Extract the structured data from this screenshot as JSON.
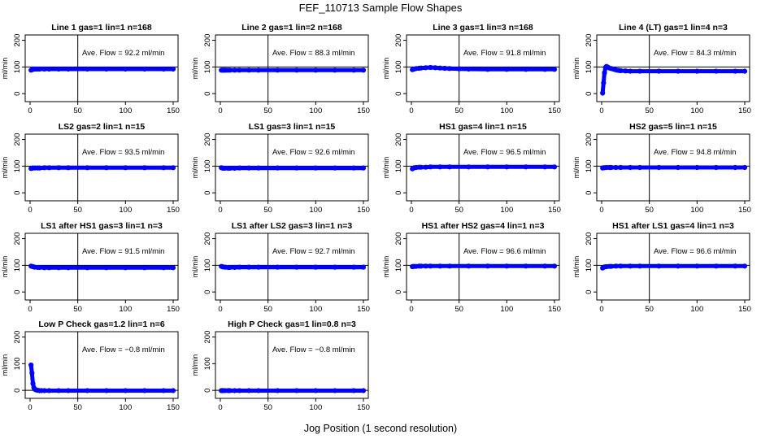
{
  "figure": {
    "title": "FEF_110713  Sample Flow Shapes",
    "xlabel": "Jog Position (1 second resolution)"
  },
  "colors": {
    "points": "#0000ff",
    "axis": "#000000"
  },
  "chart_data": [
    {
      "type": "scatter",
      "title": "Line 1 gas=1 lin=1 n=168",
      "ylabel": "ml/min",
      "annotation": "Ave. Flow =  92.2  ml/min",
      "xlim": [
        0,
        150
      ],
      "ylim": [
        -30,
        220
      ],
      "xticks": [
        0,
        50,
        100,
        150
      ],
      "yticks": [
        0,
        100,
        200
      ],
      "vline": 50,
      "hline": 100,
      "series": [
        {
          "x": [
            1,
            2,
            3,
            4,
            5,
            6,
            8,
            10,
            15,
            20,
            30,
            40,
            60,
            80,
            100,
            120,
            140,
            150
          ],
          "y": [
            88,
            90,
            91,
            92,
            92,
            92,
            92,
            92,
            92,
            92,
            92,
            92,
            92,
            92,
            92,
            92,
            92,
            92
          ]
        }
      ]
    },
    {
      "type": "scatter",
      "title": "Line 2 gas=1 lin=2 n=168",
      "ylabel": "ml/min",
      "annotation": "Ave. Flow =  88.3  ml/min",
      "xlim": [
        0,
        150
      ],
      "ylim": [
        -30,
        220
      ],
      "xticks": [
        0,
        50,
        100,
        150
      ],
      "yticks": [
        0,
        100,
        200
      ],
      "vline": 50,
      "hline": 100,
      "series": [
        {
          "x": [
            1,
            2,
            3,
            4,
            5,
            6,
            8,
            10,
            15,
            20,
            30,
            40,
            60,
            80,
            100,
            120,
            140,
            150
          ],
          "y": [
            88,
            88,
            88,
            88,
            88,
            88,
            88,
            88,
            88,
            88,
            88,
            88,
            88,
            88,
            88,
            88,
            88,
            88
          ]
        }
      ]
    },
    {
      "type": "scatter",
      "title": "Line 3 gas=1 lin=3 n=168",
      "ylabel": "ml/min",
      "annotation": "Ave. Flow =  91.8  ml/min",
      "xlim": [
        0,
        150
      ],
      "ylim": [
        -30,
        220
      ],
      "xticks": [
        0,
        50,
        100,
        150
      ],
      "yticks": [
        0,
        100,
        200
      ],
      "vline": 50,
      "hline": 100,
      "series": [
        {
          "x": [
            1,
            3,
            5,
            8,
            10,
            15,
            20,
            25,
            30,
            35,
            40,
            50,
            60,
            80,
            100,
            120,
            140,
            150
          ],
          "y": [
            90,
            92,
            94,
            95,
            96,
            97,
            98,
            97,
            96,
            95,
            94,
            93,
            92,
            91,
            91,
            91,
            91,
            91
          ]
        }
      ]
    },
    {
      "type": "scatter",
      "title": "Line 4 (LT) gas=1 lin=4 n=3",
      "ylabel": "ml/min",
      "annotation": "Ave. Flow =  84.3  ml/min",
      "xlim": [
        0,
        150
      ],
      "ylim": [
        -30,
        220
      ],
      "xticks": [
        0,
        50,
        100,
        150
      ],
      "yticks": [
        0,
        100,
        200
      ],
      "vline": 50,
      "hline": 100,
      "series": [
        {
          "x": [
            1,
            2,
            3,
            4,
            5,
            6,
            7,
            8,
            10,
            12,
            14,
            16,
            18,
            20,
            25,
            30,
            40,
            60,
            80,
            100,
            120,
            140,
            150
          ],
          "y": [
            2,
            40,
            78,
            98,
            102,
            100,
            98,
            96,
            94,
            92,
            90,
            88,
            87,
            86,
            85,
            84,
            84,
            84,
            84,
            84,
            84,
            84,
            84
          ]
        }
      ]
    },
    {
      "type": "scatter",
      "title": "LS2 gas=2 lin=1 n=15",
      "ylabel": "ml/min",
      "annotation": "Ave. Flow =  93.5  ml/min",
      "xlim": [
        0,
        150
      ],
      "ylim": [
        -30,
        220
      ],
      "xticks": [
        0,
        50,
        100,
        150
      ],
      "yticks": [
        0,
        100,
        200
      ],
      "vline": 50,
      "hline": 100,
      "series": [
        {
          "x": [
            1,
            2,
            3,
            5,
            8,
            10,
            15,
            20,
            30,
            40,
            60,
            80,
            100,
            120,
            140,
            150
          ],
          "y": [
            91,
            92,
            93,
            93,
            93,
            93,
            94,
            94,
            94,
            94,
            94,
            94,
            94,
            94,
            94,
            94
          ]
        }
      ]
    },
    {
      "type": "scatter",
      "title": "LS1 gas=3 lin=1 n=15",
      "ylabel": "ml/min",
      "annotation": "Ave. Flow =  92.6  ml/min",
      "xlim": [
        0,
        150
      ],
      "ylim": [
        -30,
        220
      ],
      "xticks": [
        0,
        50,
        100,
        150
      ],
      "yticks": [
        0,
        100,
        200
      ],
      "vline": 50,
      "hline": 100,
      "series": [
        {
          "x": [
            1,
            2,
            3,
            5,
            8,
            10,
            15,
            20,
            30,
            40,
            60,
            80,
            100,
            120,
            140,
            150
          ],
          "y": [
            94,
            93,
            92,
            92,
            92,
            92,
            92,
            93,
            93,
            93,
            93,
            93,
            93,
            93,
            93,
            93
          ]
        }
      ]
    },
    {
      "type": "scatter",
      "title": "HS1 gas=4 lin=1 n=15",
      "ylabel": "ml/min",
      "annotation": "Ave. Flow =  96.5  ml/min",
      "xlim": [
        0,
        150
      ],
      "ylim": [
        -30,
        220
      ],
      "xticks": [
        0,
        50,
        100,
        150
      ],
      "yticks": [
        0,
        100,
        200
      ],
      "vline": 50,
      "hline": 100,
      "series": [
        {
          "x": [
            1,
            2,
            3,
            5,
            8,
            10,
            15,
            20,
            30,
            40,
            60,
            80,
            100,
            120,
            140,
            150
          ],
          "y": [
            90,
            92,
            94,
            95,
            96,
            96,
            96,
            97,
            97,
            97,
            97,
            97,
            97,
            97,
            97,
            97
          ]
        }
      ]
    },
    {
      "type": "scatter",
      "title": "HS2 gas=5 lin=1 n=15",
      "ylabel": "ml/min",
      "annotation": "Ave. Flow =  94.8  ml/min",
      "xlim": [
        0,
        150
      ],
      "ylim": [
        -30,
        220
      ],
      "xticks": [
        0,
        50,
        100,
        150
      ],
      "yticks": [
        0,
        100,
        200
      ],
      "vline": 50,
      "hline": 100,
      "series": [
        {
          "x": [
            1,
            2,
            3,
            5,
            8,
            10,
            15,
            20,
            30,
            40,
            60,
            80,
            100,
            120,
            140,
            150
          ],
          "y": [
            93,
            94,
            94,
            95,
            95,
            95,
            95,
            95,
            95,
            95,
            95,
            95,
            95,
            95,
            95,
            95
          ]
        }
      ]
    },
    {
      "type": "scatter",
      "title": "LS1 after HS1 gas=3 lin=1 n=3",
      "ylabel": "ml/min",
      "annotation": "Ave. Flow =  91.5  ml/min",
      "xlim": [
        0,
        150
      ],
      "ylim": [
        -30,
        220
      ],
      "xticks": [
        0,
        50,
        100,
        150
      ],
      "yticks": [
        0,
        100,
        200
      ],
      "vline": 50,
      "hline": 100,
      "series": [
        {
          "x": [
            1,
            2,
            3,
            4,
            5,
            8,
            10,
            15,
            20,
            30,
            40,
            60,
            80,
            100,
            120,
            140,
            150
          ],
          "y": [
            97,
            96,
            95,
            94,
            93,
            92,
            92,
            91,
            91,
            91,
            91,
            91,
            91,
            91,
            91,
            91,
            91
          ]
        }
      ]
    },
    {
      "type": "scatter",
      "title": "LS1 after LS2 gas=3 lin=1 n=3",
      "ylabel": "ml/min",
      "annotation": "Ave. Flow =  92.7  ml/min",
      "xlim": [
        0,
        150
      ],
      "ylim": [
        -30,
        220
      ],
      "xticks": [
        0,
        50,
        100,
        150
      ],
      "yticks": [
        0,
        100,
        200
      ],
      "vline": 50,
      "hline": 100,
      "series": [
        {
          "x": [
            1,
            2,
            3,
            5,
            8,
            10,
            15,
            20,
            30,
            40,
            60,
            80,
            100,
            120,
            140,
            150
          ],
          "y": [
            96,
            95,
            94,
            93,
            92,
            92,
            92,
            93,
            93,
            93,
            93,
            93,
            93,
            93,
            93,
            93
          ]
        }
      ]
    },
    {
      "type": "scatter",
      "title": "HS1 after HS2 gas=4 lin=1 n=3",
      "ylabel": "ml/min",
      "annotation": "Ave. Flow =  96.6  ml/min",
      "xlim": [
        0,
        150
      ],
      "ylim": [
        -30,
        220
      ],
      "xticks": [
        0,
        50,
        100,
        150
      ],
      "yticks": [
        0,
        100,
        200
      ],
      "vline": 50,
      "hline": 100,
      "series": [
        {
          "x": [
            1,
            2,
            3,
            5,
            8,
            10,
            15,
            20,
            30,
            40,
            60,
            80,
            100,
            120,
            140,
            150
          ],
          "y": [
            95,
            96,
            96,
            96,
            97,
            97,
            97,
            97,
            97,
            97,
            97,
            97,
            97,
            97,
            97,
            97
          ]
        }
      ]
    },
    {
      "type": "scatter",
      "title": "HS1 after LS1 gas=4 lin=1 n=3",
      "ylabel": "ml/min",
      "annotation": "Ave. Flow =  96.6  ml/min",
      "xlim": [
        0,
        150
      ],
      "ylim": [
        -30,
        220
      ],
      "xticks": [
        0,
        50,
        100,
        150
      ],
      "yticks": [
        0,
        100,
        200
      ],
      "vline": 50,
      "hline": 100,
      "series": [
        {
          "x": [
            1,
            2,
            3,
            5,
            8,
            10,
            15,
            20,
            30,
            40,
            60,
            80,
            100,
            120,
            140,
            150
          ],
          "y": [
            90,
            92,
            94,
            95,
            96,
            96,
            97,
            97,
            97,
            97,
            97,
            97,
            97,
            97,
            97,
            97
          ]
        }
      ]
    },
    {
      "type": "scatter",
      "title": "Low P Check gas=1.2 lin=1 n=6",
      "ylabel": "ml/min",
      "annotation": "Ave. Flow =  −0.8  ml/min",
      "xlim": [
        0,
        150
      ],
      "ylim": [
        -30,
        220
      ],
      "xticks": [
        0,
        50,
        100,
        150
      ],
      "yticks": [
        0,
        100,
        200
      ],
      "vline": 50,
      "hline": 0,
      "series": [
        {
          "x": [
            1,
            2,
            3,
            4,
            5,
            6,
            7,
            8,
            10,
            12,
            15,
            20,
            30,
            40,
            60,
            80,
            100,
            120,
            140,
            150
          ],
          "y": [
            95,
            65,
            25,
            10,
            4,
            2,
            1,
            0,
            -1,
            -1,
            -1,
            -1,
            -1,
            -1,
            -1,
            -1,
            -1,
            -1,
            -1,
            -1
          ]
        }
      ]
    },
    {
      "type": "scatter",
      "title": "High P Check gas=1 lin=0.8 n=3",
      "ylabel": "ml/min",
      "annotation": "Ave. Flow =  −0.8  ml/min",
      "xlim": [
        0,
        150
      ],
      "ylim": [
        -30,
        220
      ],
      "xticks": [
        0,
        50,
        100,
        150
      ],
      "yticks": [
        0,
        100,
        200
      ],
      "vline": 50,
      "hline": 0,
      "series": [
        {
          "x": [
            1,
            2,
            3,
            5,
            8,
            10,
            15,
            20,
            30,
            40,
            60,
            80,
            100,
            120,
            140,
            150
          ],
          "y": [
            -1,
            -1,
            -1,
            -1,
            -1,
            -1,
            -1,
            -1,
            -1,
            -1,
            -1,
            -1,
            -1,
            -1,
            -1,
            -1
          ]
        }
      ]
    }
  ]
}
